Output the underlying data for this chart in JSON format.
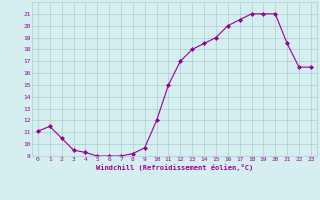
{
  "x": [
    0,
    1,
    2,
    3,
    4,
    5,
    6,
    7,
    8,
    9,
    10,
    11,
    12,
    13,
    14,
    15,
    16,
    17,
    18,
    19,
    20,
    21,
    22,
    23
  ],
  "y": [
    11.1,
    11.5,
    10.5,
    9.5,
    9.3,
    9.0,
    9.0,
    9.0,
    9.2,
    9.7,
    12.0,
    15.0,
    17.0,
    18.0,
    18.5,
    19.0,
    20.0,
    20.5,
    21.0,
    21.0,
    21.0,
    18.5,
    16.5,
    16.5
  ],
  "line_color": "#990099",
  "marker": "D",
  "marker_size": 2.0,
  "bg_color": "#d5eef0",
  "grid_color": "#aacccc",
  "xlabel": "Windchill (Refroidissement éolien,°C)",
  "xlabel_color": "#990099",
  "tick_color": "#990099",
  "ylim": [
    9,
    22
  ],
  "xlim": [
    -0.5,
    23.5
  ],
  "yticks": [
    9,
    10,
    11,
    12,
    13,
    14,
    15,
    16,
    17,
    18,
    19,
    20,
    21
  ],
  "xticks": [
    0,
    1,
    2,
    3,
    4,
    5,
    6,
    7,
    8,
    9,
    10,
    11,
    12,
    13,
    14,
    15,
    16,
    17,
    18,
    19,
    20,
    21,
    22,
    23
  ]
}
